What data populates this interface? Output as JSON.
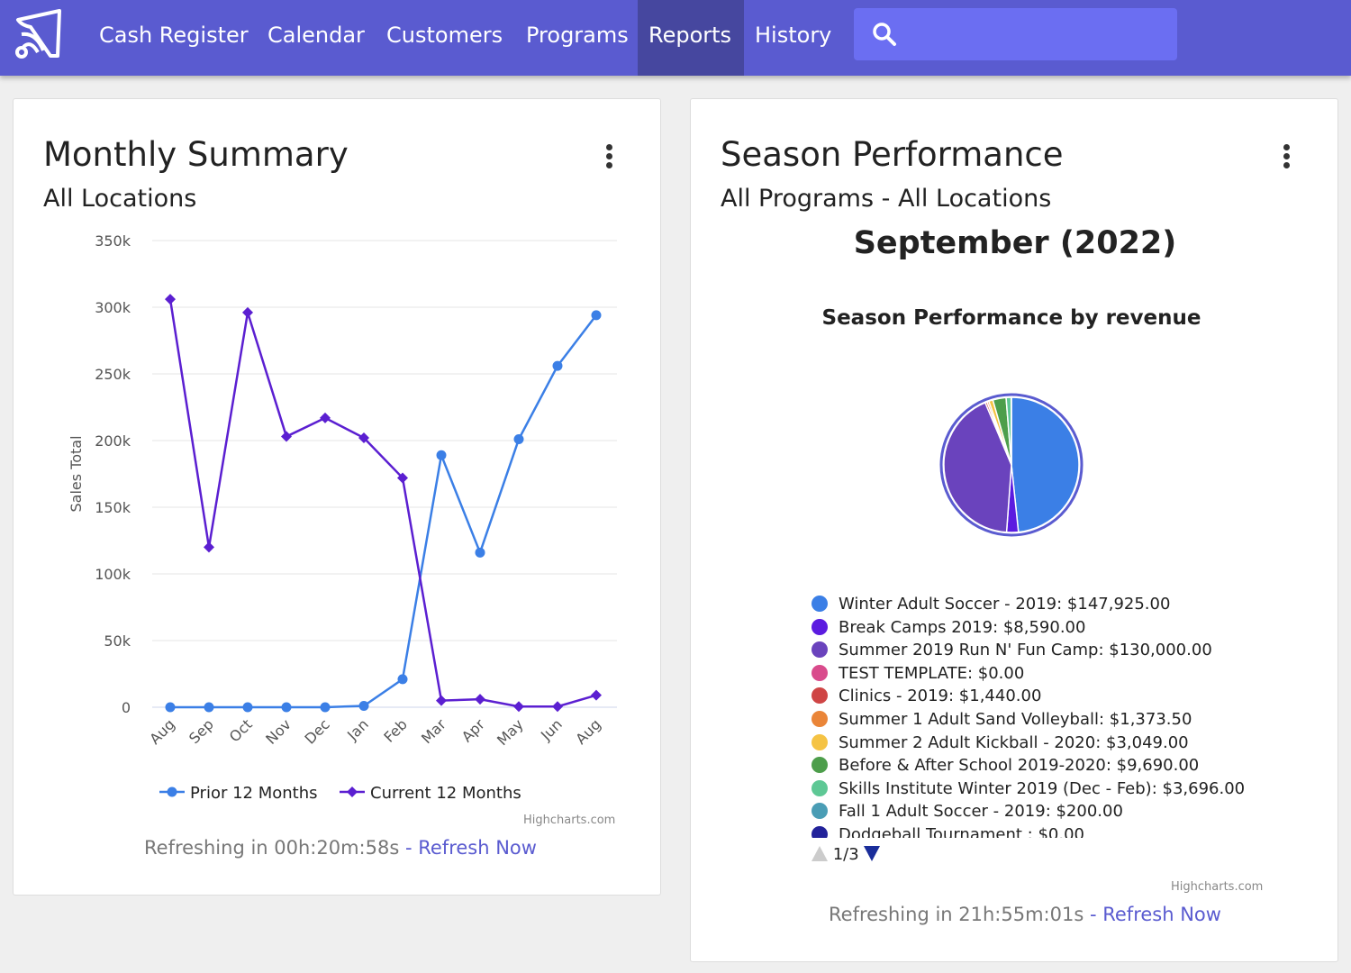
{
  "nav": {
    "items": [
      {
        "label": "Cash Register"
      },
      {
        "label": "Calendar"
      },
      {
        "label": "Customers"
      },
      {
        "label": "Programs"
      },
      {
        "label": "Reports",
        "active": true
      },
      {
        "label": "History"
      }
    ],
    "search_placeholder": ""
  },
  "monthly": {
    "title": "Monthly Summary",
    "subtitle": "All Locations",
    "refresh_text": "Refreshing in 00h:20m:58s",
    "refresh_link": "- Refresh Now",
    "credit": "Highcharts.com"
  },
  "season": {
    "title": "Season Performance",
    "subtitle": "All Programs - All Locations",
    "period": "September (2022)",
    "chart_title": "Season Performance by revenue",
    "pager": "1/3",
    "refresh_text": "Refreshing in 21h:55m:01s",
    "refresh_link": "- Refresh Now",
    "credit": "Highcharts.com"
  },
  "chart_data": [
    {
      "type": "line",
      "title": "",
      "xlabel": "",
      "ylabel": "Sales Total",
      "ylim": [
        0,
        350000
      ],
      "yticks": [
        "0",
        "50k",
        "100k",
        "150k",
        "200k",
        "250k",
        "300k",
        "350k"
      ],
      "categories": [
        "Aug",
        "Sep",
        "Oct",
        "Nov",
        "Dec",
        "Jan",
        "Feb",
        "Mar",
        "Apr",
        "May",
        "Jun",
        "Aug"
      ],
      "legend": "bottom",
      "series": [
        {
          "name": "Prior 12 Months",
          "color": "#3b7fe6",
          "marker": "circle",
          "values": [
            0,
            0,
            0,
            0,
            0,
            1000,
            21000,
            189000,
            116000,
            201000,
            256000,
            294000
          ]
        },
        {
          "name": "Current 12 Months",
          "color": "#5b1fd1",
          "marker": "diamond",
          "values": [
            306000,
            120000,
            296000,
            203000,
            217000,
            202000,
            172000,
            5000,
            6000,
            500,
            500,
            9000
          ]
        }
      ]
    },
    {
      "type": "pie",
      "title": "Season Performance by revenue",
      "slices": [
        {
          "label": "Winter Adult Soccer - 2019: $147,925.00",
          "value": 147925,
          "color": "#3b7fe6"
        },
        {
          "label": "Break Camps 2019: $8,590.00",
          "value": 8590,
          "color": "#5b1be0"
        },
        {
          "label": "Summer 2019 Run N' Fun Camp: $130,000.00",
          "value": 130000,
          "color": "#6a43bd"
        },
        {
          "label": "TEST TEMPLATE: $0.00",
          "value": 0,
          "color": "#d94b8c"
        },
        {
          "label": "Clinics - 2019: $1,440.00",
          "value": 1440,
          "color": "#cf4545"
        },
        {
          "label": "Summer 1 Adult Sand Volleyball: $1,373.50",
          "value": 1373.5,
          "color": "#ea8538"
        },
        {
          "label": "Summer 2 Adult Kickball - 2020: $3,049.00",
          "value": 3049,
          "color": "#f5c344"
        },
        {
          "label": "Before & After School 2019-2020: $9,690.00",
          "value": 9690,
          "color": "#4d9e4b"
        },
        {
          "label": "Skills Institute Winter 2019 (Dec - Feb): $3,696.00",
          "value": 3696,
          "color": "#5ec895"
        },
        {
          "label": "Fall 1 Adult Soccer - 2019: $200.00",
          "value": 200,
          "color": "#4a9db5"
        },
        {
          "label": "Dodgeball Tournament : $0.00",
          "value": 0,
          "color": "#22229a"
        }
      ]
    }
  ]
}
